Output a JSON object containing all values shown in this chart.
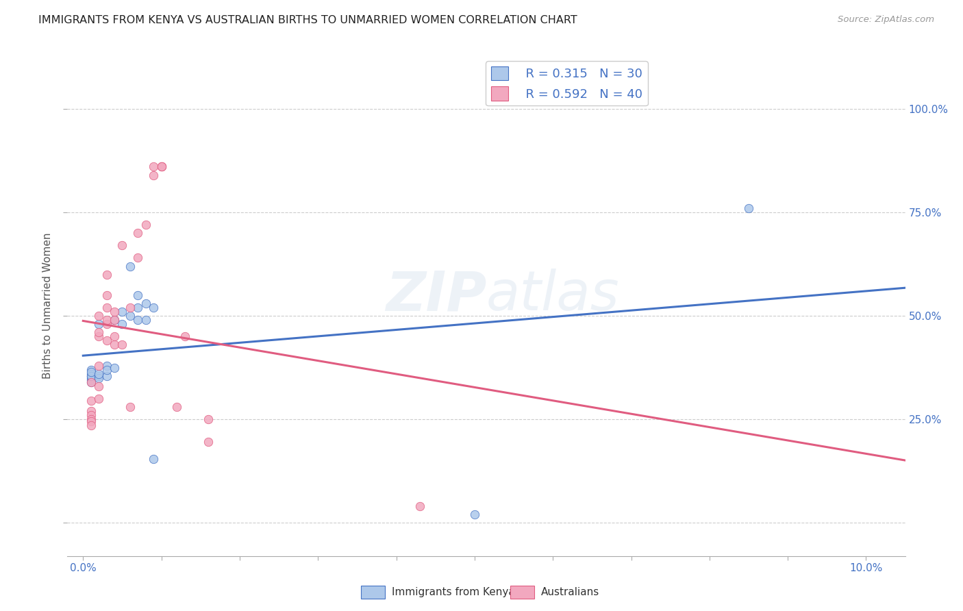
{
  "title": "IMMIGRANTS FROM KENYA VS AUSTRALIAN BIRTHS TO UNMARRIED WOMEN CORRELATION CHART",
  "source": "Source: ZipAtlas.com",
  "ylabel": "Births to Unmarried Women",
  "legend_blue_r": "R = 0.315",
  "legend_blue_n": "N = 30",
  "legend_pink_r": "R = 0.592",
  "legend_pink_n": "N = 40",
  "legend_label_blue": "Immigrants from Kenya",
  "legend_label_pink": "Australians",
  "blue_color": "#adc8ea",
  "pink_color": "#f2a8bf",
  "blue_line_color": "#4472c4",
  "pink_line_color": "#e05c80",
  "watermark_color": "#a0b8d8",
  "blue_scatter": [
    [
      0.001,
      0.37
    ],
    [
      0.001,
      0.36
    ],
    [
      0.001,
      0.355
    ],
    [
      0.001,
      0.35
    ],
    [
      0.001,
      0.345
    ],
    [
      0.001,
      0.34
    ],
    [
      0.001,
      0.355
    ],
    [
      0.001,
      0.365
    ],
    [
      0.002,
      0.355
    ],
    [
      0.002,
      0.35
    ],
    [
      0.002,
      0.36
    ],
    [
      0.002,
      0.48
    ],
    [
      0.003,
      0.355
    ],
    [
      0.003,
      0.38
    ],
    [
      0.003,
      0.37
    ],
    [
      0.004,
      0.375
    ],
    [
      0.004,
      0.49
    ],
    [
      0.005,
      0.51
    ],
    [
      0.005,
      0.48
    ],
    [
      0.006,
      0.62
    ],
    [
      0.006,
      0.5
    ],
    [
      0.007,
      0.49
    ],
    [
      0.007,
      0.52
    ],
    [
      0.007,
      0.55
    ],
    [
      0.008,
      0.53
    ],
    [
      0.008,
      0.49
    ],
    [
      0.009,
      0.52
    ],
    [
      0.009,
      0.155
    ],
    [
      0.085,
      0.76
    ],
    [
      0.05,
      0.02
    ]
  ],
  "pink_scatter": [
    [
      0.001,
      0.295
    ],
    [
      0.001,
      0.27
    ],
    [
      0.001,
      0.26
    ],
    [
      0.001,
      0.25
    ],
    [
      0.001,
      0.245
    ],
    [
      0.001,
      0.235
    ],
    [
      0.001,
      0.34
    ],
    [
      0.002,
      0.33
    ],
    [
      0.002,
      0.3
    ],
    [
      0.002,
      0.38
    ],
    [
      0.002,
      0.45
    ],
    [
      0.002,
      0.46
    ],
    [
      0.002,
      0.5
    ],
    [
      0.003,
      0.44
    ],
    [
      0.003,
      0.48
    ],
    [
      0.003,
      0.49
    ],
    [
      0.003,
      0.52
    ],
    [
      0.003,
      0.55
    ],
    [
      0.003,
      0.6
    ],
    [
      0.004,
      0.43
    ],
    [
      0.004,
      0.45
    ],
    [
      0.004,
      0.49
    ],
    [
      0.004,
      0.51
    ],
    [
      0.005,
      0.67
    ],
    [
      0.005,
      0.43
    ],
    [
      0.006,
      0.28
    ],
    [
      0.006,
      0.52
    ],
    [
      0.007,
      0.7
    ],
    [
      0.007,
      0.64
    ],
    [
      0.008,
      0.72
    ],
    [
      0.009,
      0.84
    ],
    [
      0.009,
      0.86
    ],
    [
      0.01,
      0.86
    ],
    [
      0.01,
      0.86
    ],
    [
      0.01,
      0.86
    ],
    [
      0.012,
      0.28
    ],
    [
      0.013,
      0.45
    ],
    [
      0.016,
      0.25
    ],
    [
      0.016,
      0.195
    ],
    [
      0.043,
      0.04
    ]
  ],
  "xlim": [
    -0.002,
    0.105
  ],
  "ylim": [
    -0.08,
    1.13
  ],
  "x_ticks": [
    0.0,
    0.01,
    0.02,
    0.03,
    0.04,
    0.05,
    0.06,
    0.07,
    0.08,
    0.09,
    0.1
  ],
  "x_tick_labels": [
    "0.0%",
    "",
    "",
    "",
    "",
    "",
    "",
    "",
    "",
    "",
    "10.0%"
  ],
  "y_ticks": [
    0.0,
    0.25,
    0.5,
    0.75,
    1.0
  ],
  "y_tick_labels_right": [
    "25.0%",
    "50.0%",
    "75.0%",
    "100.0%"
  ]
}
